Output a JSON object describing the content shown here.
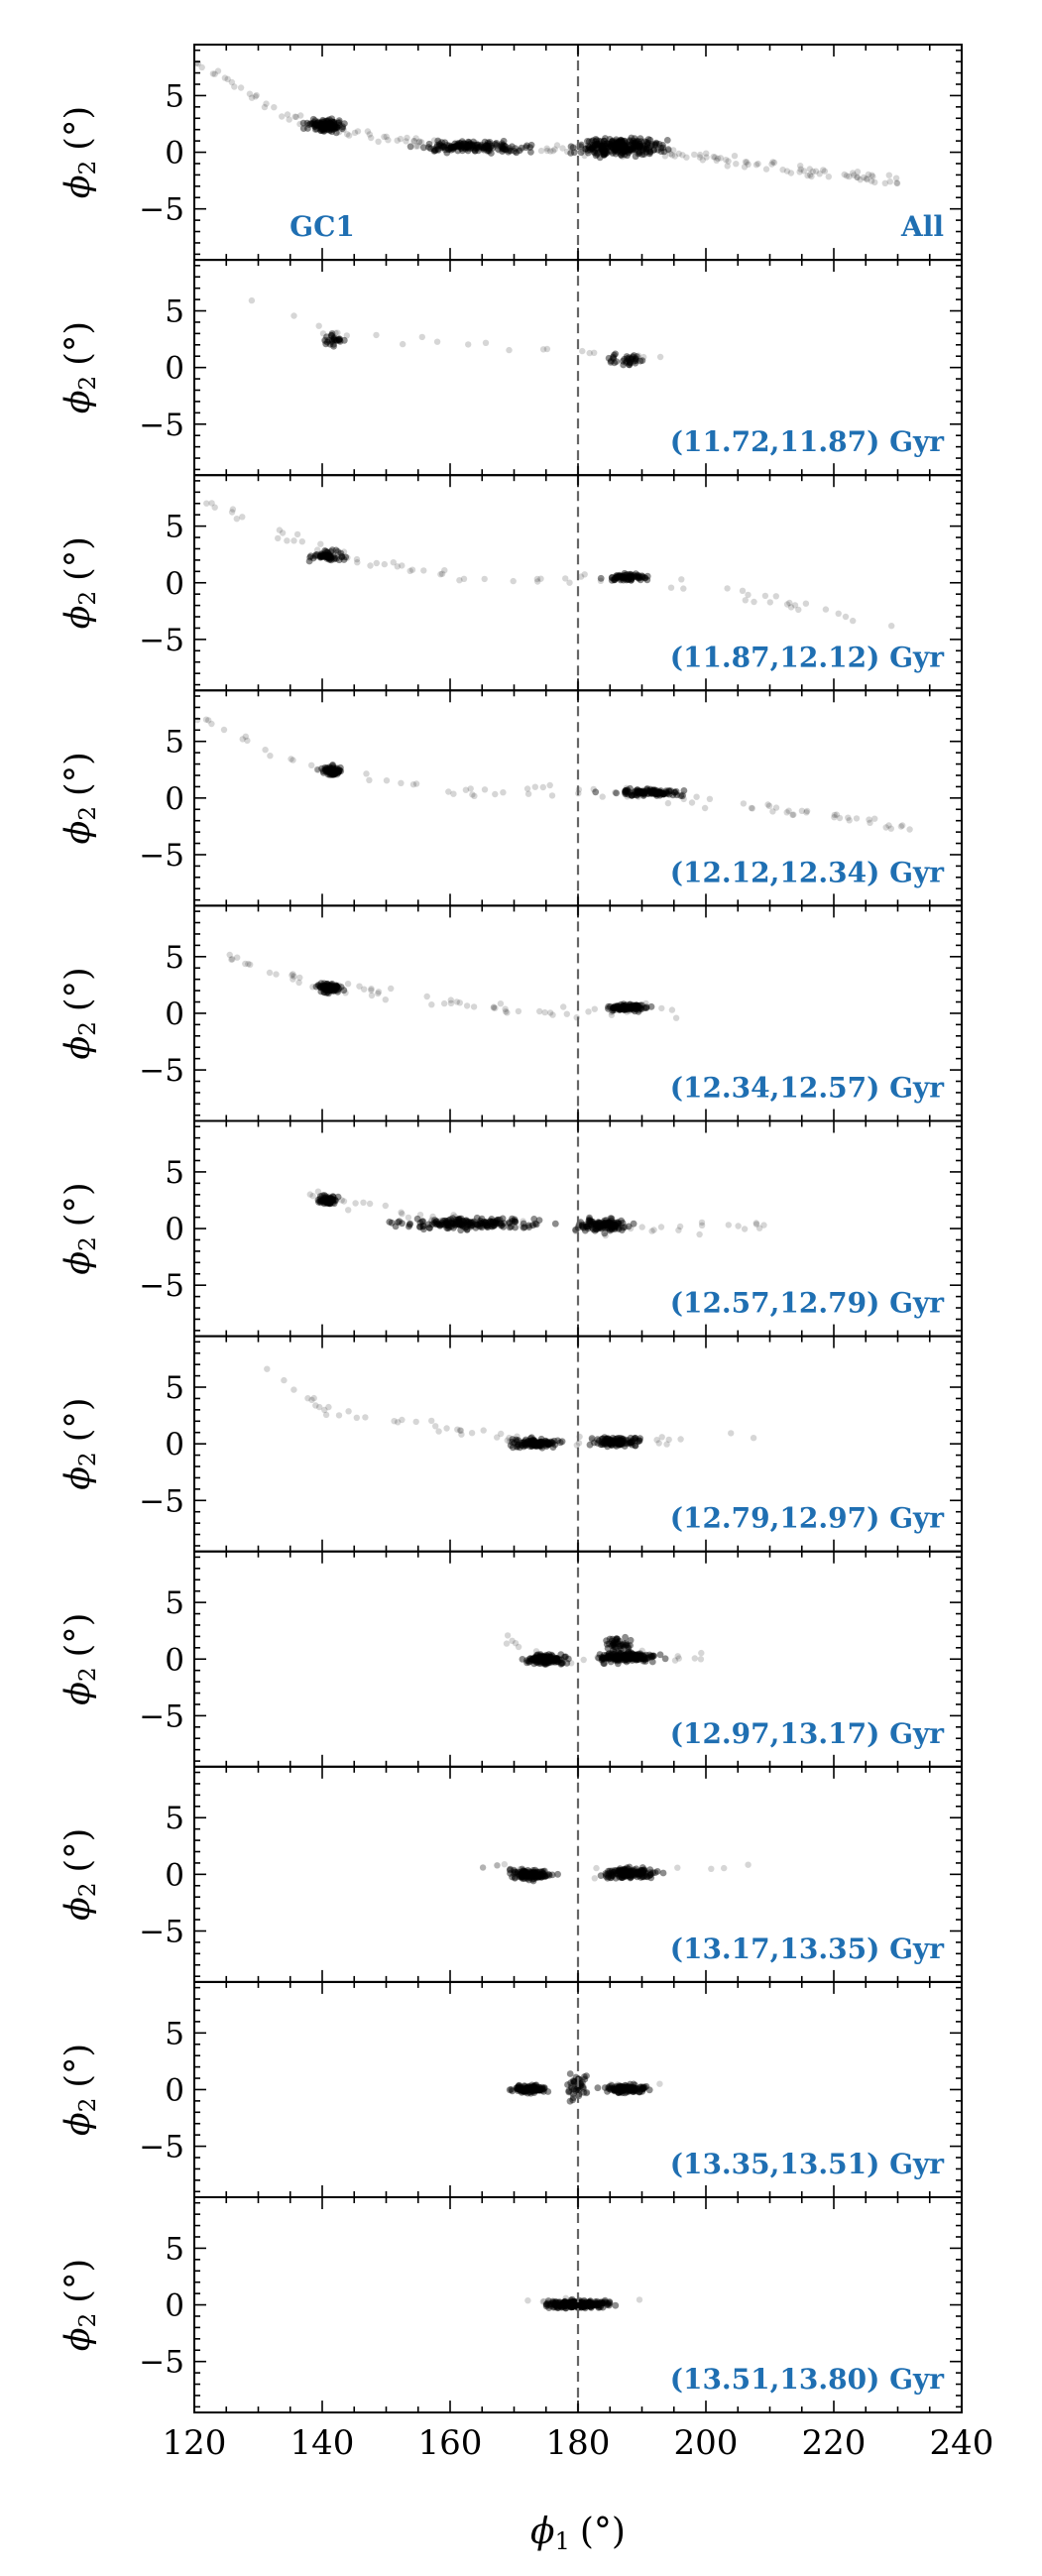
{
  "chart_data": {
    "type": "scatter",
    "layout": "vertical-stack-shared-x",
    "xlabel_main": "ϕ",
    "xlabel_sub": "1",
    "xlabel_unit": "(°)",
    "ylabel_main": "ϕ",
    "ylabel_sub": "2",
    "ylabel_unit": "(°)",
    "xlim": [
      120,
      240
    ],
    "ylim": [
      -9.5,
      9.5
    ],
    "xticks": [
      "120",
      "140",
      "160",
      "180",
      "200",
      "220",
      "240"
    ],
    "xtick_values": [
      120,
      140,
      160,
      180,
      200,
      220,
      240
    ],
    "yticks": [
      "5",
      "0",
      "−5"
    ],
    "ytick_values": [
      5,
      0,
      -5
    ],
    "reference_line_x": 180,
    "point_color": "#000000",
    "label_color": "#1f6fb2",
    "panels": [
      {
        "label": "All",
        "extra_label": "GC1",
        "clusters": [
          {
            "x": [
              136,
              145
            ],
            "y": [
              1.5,
              3.2
            ],
            "n": 120
          },
          {
            "x": [
              150,
              178
            ],
            "y": [
              -0.3,
              1.2
            ],
            "n": 160
          },
          {
            "x": [
              176,
              197
            ],
            "y": [
              -0.9,
              1.8
            ],
            "n": 260
          }
        ],
        "trend": [
          [
            120,
            8
          ],
          [
            135,
            3
          ],
          [
            150,
            1.2
          ],
          [
            170,
            0.3
          ],
          [
            185,
            0.2
          ],
          [
            200,
            -0.4
          ],
          [
            215,
            -1.6
          ],
          [
            230,
            -2.5
          ]
        ],
        "scatter_n": 180
      },
      {
        "label": "(11.72,11.87) Gyr",
        "clusters": [
          {
            "x": [
              139,
              145
            ],
            "y": [
              1.5,
              3.2
            ],
            "n": 25
          },
          {
            "x": [
              183,
              193
            ],
            "y": [
              -0.2,
              1.6
            ],
            "n": 35
          }
        ],
        "trend": [
          [
            124,
            7
          ],
          [
            130,
            5.5
          ],
          [
            140,
            3
          ],
          [
            185,
            1
          ],
          [
            195,
            0.5
          ]
        ],
        "scatter_n": 25
      },
      {
        "label": "(11.87,12.12) Gyr",
        "clusters": [
          {
            "x": [
              137,
              145
            ],
            "y": [
              1.7,
              3.0
            ],
            "n": 60
          },
          {
            "x": [
              183,
              193
            ],
            "y": [
              0.0,
              1.0
            ],
            "n": 70
          }
        ],
        "trend": [
          [
            120,
            7.5
          ],
          [
            130,
            5
          ],
          [
            145,
            2
          ],
          [
            165,
            0.3
          ],
          [
            185,
            0.6
          ],
          [
            200,
            -0.5
          ],
          [
            215,
            -2
          ],
          [
            230,
            -4
          ]
        ],
        "scatter_n": 70
      },
      {
        "label": "(12.12,12.34) Gyr",
        "clusters": [
          {
            "x": [
              139,
              144
            ],
            "y": [
              1.7,
              3.0
            ],
            "n": 80
          },
          {
            "x": [
              182,
              200
            ],
            "y": [
              0.0,
              1.0
            ],
            "n": 110
          }
        ],
        "trend": [
          [
            120,
            7.5
          ],
          [
            130,
            4.5
          ],
          [
            140,
            2.4
          ],
          [
            160,
            0.6
          ],
          [
            185,
            0.5
          ],
          [
            200,
            -0.3
          ],
          [
            215,
            -1.2
          ],
          [
            232,
            -2.5
          ]
        ],
        "scatter_n": 90
      },
      {
        "label": "(12.34,12.57) Gyr",
        "clusters": [
          {
            "x": [
              138,
              144
            ],
            "y": [
              1.5,
              3.0
            ],
            "n": 80
          },
          {
            "x": [
              183,
              193
            ],
            "y": [
              0.0,
              1.0
            ],
            "n": 90
          }
        ],
        "trend": [
          [
            125,
            5
          ],
          [
            140,
            2.5
          ],
          [
            160,
            1
          ],
          [
            178,
            -0.2
          ],
          [
            190,
            0.5
          ],
          [
            198,
            -0.2
          ]
        ],
        "scatter_n": 70
      },
      {
        "label": "(12.57,12.79) Gyr",
        "clusters": [
          {
            "x": [
              138,
              144
            ],
            "y": [
              1.8,
              3.2
            ],
            "n": 60
          },
          {
            "x": [
              145,
              180
            ],
            "y": [
              -0.4,
              1.3
            ],
            "n": 180
          },
          {
            "x": [
              178,
              190
            ],
            "y": [
              -0.6,
              1.2
            ],
            "n": 120
          }
        ],
        "trend": [
          [
            130,
            5
          ],
          [
            140,
            2.6
          ],
          [
            160,
            0.8
          ],
          [
            180,
            0
          ],
          [
            200,
            0
          ],
          [
            210,
            0.1
          ]
        ],
        "scatter_n": 60
      },
      {
        "label": "(12.79,12.97) Gyr",
        "clusters": [
          {
            "x": [
              167,
              180
            ],
            "y": [
              -0.6,
              0.7
            ],
            "n": 110
          },
          {
            "x": [
              180,
              192
            ],
            "y": [
              -0.5,
              0.9
            ],
            "n": 110
          }
        ],
        "trend": [
          [
            130,
            7
          ],
          [
            140,
            3
          ],
          [
            160,
            1.5
          ],
          [
            175,
            0
          ],
          [
            195,
            0.3
          ],
          [
            210,
            1
          ]
        ],
        "scatter_n": 55
      },
      {
        "label": "(12.97,13.17) Gyr",
        "clusters": [
          {
            "x": [
              170,
              180
            ],
            "y": [
              -0.7,
              0.7
            ],
            "n": 150
          },
          {
            "x": [
              180,
              195
            ],
            "y": [
              -0.6,
              0.9
            ],
            "n": 180
          },
          {
            "x": [
              183,
              190
            ],
            "y": [
              0.5,
              2.3
            ],
            "n": 40
          }
        ],
        "trend": [
          [
            166,
            2.5
          ],
          [
            175,
            0
          ],
          [
            190,
            0.3
          ],
          [
            200,
            0.2
          ]
        ],
        "scatter_n": 20
      },
      {
        "label": "(13.17,13.35) Gyr",
        "clusters": [
          {
            "x": [
              167,
              178
            ],
            "y": [
              -0.8,
              0.8
            ],
            "n": 130
          },
          {
            "x": [
              181,
              195
            ],
            "y": [
              -0.7,
              0.9
            ],
            "n": 150
          }
        ],
        "trend": [
          [
            165,
            0.8
          ],
          [
            178,
            -0.2
          ],
          [
            182,
            0
          ],
          [
            200,
            0.5
          ],
          [
            210,
            1.1
          ]
        ],
        "scatter_n": 15
      },
      {
        "label": "(13.35,13.51) Gyr",
        "clusters": [
          {
            "x": [
              168,
              177
            ],
            "y": [
              -0.5,
              0.6
            ],
            "n": 120
          },
          {
            "x": [
              182,
              193
            ],
            "y": [
              -0.5,
              0.6
            ],
            "n": 130
          },
          {
            "x": [
              177,
              183
            ],
            "y": [
              -1.5,
              2.0
            ],
            "n": 40
          }
        ],
        "trend": [
          [
            168,
            0.3
          ],
          [
            180,
            0
          ],
          [
            193,
            0.3
          ]
        ],
        "scatter_n": 8
      },
      {
        "label": "(13.51,13.80) Gyr",
        "clusters": [
          {
            "x": [
              172,
              188
            ],
            "y": [
              -0.5,
              0.6
            ],
            "n": 260
          }
        ],
        "trend": [
          [
            172,
            0.2
          ],
          [
            180,
            0
          ],
          [
            190,
            0.1
          ]
        ],
        "scatter_n": 6
      }
    ]
  }
}
